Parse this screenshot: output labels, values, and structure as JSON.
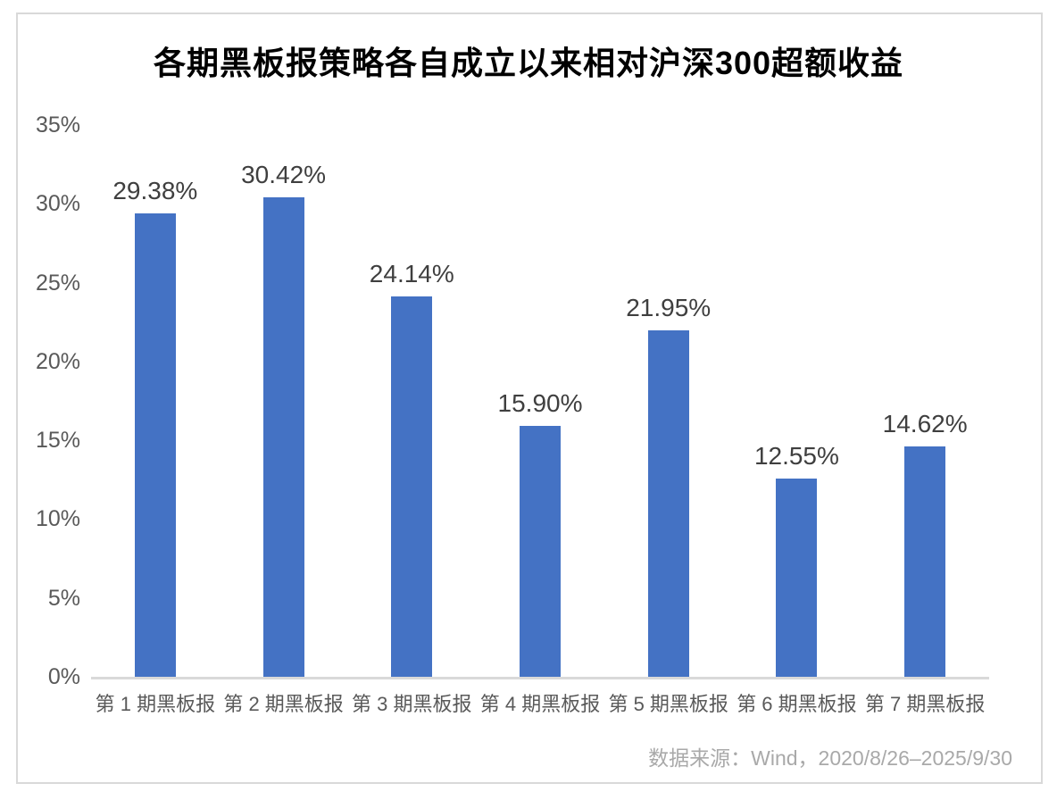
{
  "page": {
    "title": "各期黑板报策略各自成立以来相对沪深300超额收益",
    "source_note": "数据来源：Wind，2020/8/26–2025/9/30"
  },
  "chart_data": {
    "type": "bar",
    "title": "各期黑板报策略各自成立以来相对沪深300超额收益",
    "categories": [
      "第 1 期黑板报",
      "第 2 期黑板报",
      "第 3 期黑板报",
      "第 4 期黑板报",
      "第 5 期黑板报",
      "第 6 期黑板报",
      "第 7 期黑板报"
    ],
    "values": [
      29.38,
      30.42,
      24.14,
      15.9,
      21.95,
      12.55,
      14.62
    ],
    "data_labels": [
      "29.38%",
      "30.42%",
      "24.14%",
      "15.90%",
      "21.95%",
      "12.55%",
      "14.62%"
    ],
    "xlabel": "",
    "ylabel": "",
    "ylim": [
      0,
      35
    ],
    "ytick_step": 5,
    "ytick_labels": [
      "0%",
      "5%",
      "10%",
      "15%",
      "20%",
      "25%",
      "30%",
      "35%"
    ],
    "grid": false,
    "legend_position": "none",
    "source_note": "数据来源：Wind，2020/8/26–2025/9/30",
    "colors": {
      "bar": "#4472C4",
      "axis_line": "#d9d9d9",
      "tick_label": "#595959",
      "data_label": "#3f3f3f",
      "title": "#000000",
      "source": "#a9a9a9",
      "frame_border": "#d9d9d9",
      "background": "#ffffff"
    }
  }
}
